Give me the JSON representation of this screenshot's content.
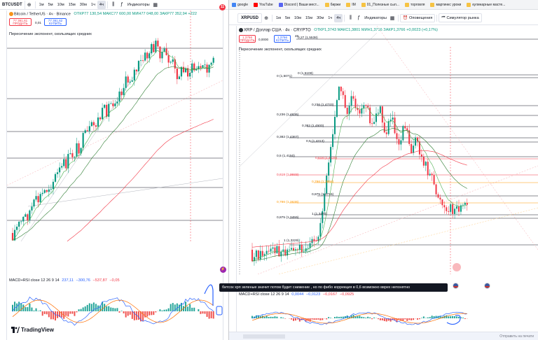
{
  "left": {
    "symbol": "BTCUSDT",
    "timeframes": [
      "1м",
      "5м",
      "10м",
      "15м",
      "30м",
      "1ч",
      "4ч"
    ],
    "active_timeframe": "4ч",
    "indicators_label": "Индикаторы",
    "legend": {
      "title": "Bitcoin / TetherUS · 4ч · Binance",
      "ohlc": "ОТКР77 130,54 МАКС77 600,00 МИН77 048,00 ЗАКР77 352,94 +222",
      "sell_price": "77 361,61",
      "sell_label": "ПРОДАТЬ",
      "spread": "0,01",
      "buy_price": "77 361,62",
      "buy_label": "КУПИТЬ",
      "indicator": "Пересечение экспонент, скользящих средних"
    },
    "macd_label": "MACD+RSI close 12 26 9 14",
    "macd_values": [
      "237,11",
      "−300,76",
      "−537,87",
      "−0,05"
    ],
    "logo_text": "TradingView"
  },
  "right": {
    "bookmarks": [
      "google",
      "YouTube",
      "Discord | Ваши мест...",
      "биржи",
      "IM",
      "01_Полезные сыл...",
      "торговля",
      "мартинкс уроки",
      "кулинарные масте..."
    ],
    "symbol": "XRPUSD",
    "timeframes": [
      "1м",
      "5м",
      "10м",
      "15м",
      "30м",
      "1ч",
      "4ч"
    ],
    "active_timeframe": "4ч",
    "indicators_label": "Индикаторы",
    "alerts_label": "Оповещения",
    "replay_label": "Симулятор рынка",
    "legend": {
      "title": "XRP / Доллар США · 4ч · CRYPTO",
      "ohlc": "ОТКР1,3743 МАКС1,3801 МИН1,3716 ЗАКР1,3766 +0,0023 (+0,17%)",
      "sell_price": "1,3766",
      "sell_label": "ПРОДАТЬ",
      "spread": "0,0000",
      "buy_price": "1,3766",
      "buy_label": "КУПИТЬ",
      "indicator": "Пересечение экспонент, скользящих средних"
    },
    "fib_levels": [
      {
        "label": "0,27 (1,5538)",
        "color": "default"
      },
      {
        "label": "0 (1,5108)",
        "color": "default"
      },
      {
        "label": "0 (1,5071)",
        "color": "default"
      },
      {
        "label": "0,236 (1,4733)",
        "color": "default"
      },
      {
        "label": "0,236 (1,4636)",
        "color": "default"
      },
      {
        "label": "0,382 (1,4500)",
        "color": "default"
      },
      {
        "label": "0,382 (1,4367)",
        "color": "default"
      },
      {
        "label": "0,5 (1,4313)",
        "color": "default"
      },
      {
        "label": "0,5 (1,4150)",
        "color": "default"
      },
      {
        "label": "0,618 (1,4125)",
        "color": "red"
      },
      {
        "label": "0,618 (1,3933)",
        "color": "red"
      },
      {
        "label": "0,786 (1,3858)",
        "color": "orange"
      },
      {
        "label": "0,875 (1,3716)",
        "color": "default"
      },
      {
        "label": "0,786 (1,3638)",
        "color": "orange"
      },
      {
        "label": "1 (1,3470)",
        "color": "default"
      },
      {
        "label": "0,875 (1,3459)",
        "color": "default"
      },
      {
        "label": "1 (1,3229)",
        "color": "default"
      }
    ],
    "tooltip": "битсок  хрп зеленые значит потом будет снижение , но по фибо коррекция в 0,6 возможно вврех непонятно",
    "macd_label": "MACD+RSI close 12 26 9 14",
    "macd_values": [
      "0,0044",
      "−0,0123",
      "−0,0167",
      "−0,0925"
    ],
    "bottom_right": "Отправить на печати",
    "extra_label": "48"
  },
  "colors": {
    "up": "#089981",
    "down": "#f23645",
    "ema_green": "#4caf50",
    "ema_red": "#f23645",
    "macd_blue": "#2962ff",
    "macd_orange": "#ff6d00",
    "annotation_blue": "#2962ff"
  }
}
